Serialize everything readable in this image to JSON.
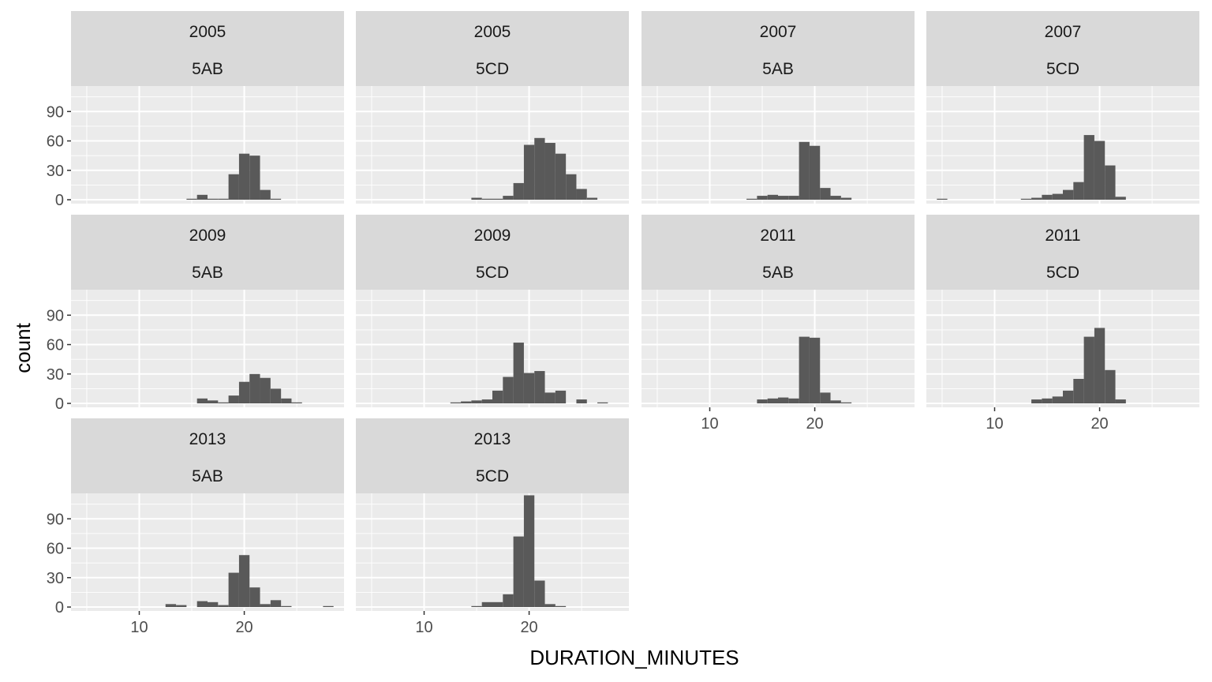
{
  "chart_data": {
    "type": "bar",
    "chart_kind": "faceted histogram",
    "xlabel": "DURATION_MINUTES",
    "ylabel": "count",
    "xlim": [
      3.5,
      29.5
    ],
    "ylim": [
      -4,
      116
    ],
    "x_ticks": [
      10,
      20
    ],
    "y_ticks": [
      0,
      30,
      60,
      90
    ],
    "bin_width": 1,
    "grid": true,
    "background": "#ebebeb",
    "strip_color": "#d9d9d9",
    "bar_color": "#595959",
    "gridline_color": "#ffffff",
    "panels": [
      {
        "year": "2005",
        "group": "5AB",
        "row": 0,
        "col": 0,
        "bins": [
          [
            15,
            1
          ],
          [
            16,
            5
          ],
          [
            17,
            1
          ],
          [
            18,
            1
          ],
          [
            19,
            26
          ],
          [
            20,
            47
          ],
          [
            21,
            45
          ],
          [
            22,
            10
          ],
          [
            23,
            1
          ]
        ]
      },
      {
        "year": "2005",
        "group": "5CD",
        "row": 0,
        "col": 1,
        "bins": [
          [
            15,
            2
          ],
          [
            16,
            1
          ],
          [
            17,
            1
          ],
          [
            18,
            4
          ],
          [
            19,
            17
          ],
          [
            20,
            56
          ],
          [
            21,
            63
          ],
          [
            22,
            58
          ],
          [
            23,
            47
          ],
          [
            24,
            26
          ],
          [
            25,
            11
          ],
          [
            26,
            2
          ]
        ]
      },
      {
        "year": "2007",
        "group": "5AB",
        "row": 0,
        "col": 2,
        "bins": [
          [
            14,
            1
          ],
          [
            15,
            4
          ],
          [
            16,
            5
          ],
          [
            17,
            4
          ],
          [
            18,
            4
          ],
          [
            19,
            59
          ],
          [
            20,
            55
          ],
          [
            21,
            12
          ],
          [
            22,
            4
          ],
          [
            23,
            2
          ]
        ]
      },
      {
        "year": "2007",
        "group": "5CD",
        "row": 0,
        "col": 3,
        "bins": [
          [
            5,
            1
          ],
          [
            13,
            1
          ],
          [
            14,
            2
          ],
          [
            15,
            5
          ],
          [
            16,
            6
          ],
          [
            17,
            10
          ],
          [
            18,
            18
          ],
          [
            19,
            66
          ],
          [
            20,
            60
          ],
          [
            21,
            35
          ],
          [
            22,
            3
          ]
        ]
      },
      {
        "year": "2009",
        "group": "5AB",
        "row": 1,
        "col": 0,
        "bins": [
          [
            16,
            5
          ],
          [
            17,
            3
          ],
          [
            18,
            1
          ],
          [
            19,
            8
          ],
          [
            20,
            22
          ],
          [
            21,
            30
          ],
          [
            22,
            26
          ],
          [
            23,
            15
          ],
          [
            24,
            5
          ],
          [
            25,
            1
          ]
        ]
      },
      {
        "year": "2009",
        "group": "5CD",
        "row": 1,
        "col": 1,
        "bins": [
          [
            13,
            1
          ],
          [
            14,
            2
          ],
          [
            15,
            3
          ],
          [
            16,
            4
          ],
          [
            17,
            13
          ],
          [
            18,
            27
          ],
          [
            19,
            62
          ],
          [
            20,
            31
          ],
          [
            21,
            33
          ],
          [
            22,
            11
          ],
          [
            23,
            13
          ],
          [
            25,
            4
          ],
          [
            27,
            1
          ]
        ]
      },
      {
        "year": "2011",
        "group": "5AB",
        "row": 1,
        "col": 2,
        "bins": [
          [
            15,
            4
          ],
          [
            16,
            5
          ],
          [
            17,
            6
          ],
          [
            18,
            5
          ],
          [
            19,
            68
          ],
          [
            20,
            67
          ],
          [
            21,
            11
          ],
          [
            22,
            3
          ],
          [
            23,
            1
          ]
        ]
      },
      {
        "year": "2011",
        "group": "5CD",
        "row": 1,
        "col": 3,
        "bins": [
          [
            14,
            4
          ],
          [
            15,
            5
          ],
          [
            16,
            7
          ],
          [
            17,
            13
          ],
          [
            18,
            25
          ],
          [
            19,
            68
          ],
          [
            20,
            77
          ],
          [
            21,
            34
          ],
          [
            22,
            4
          ]
        ]
      },
      {
        "year": "2013",
        "group": "5AB",
        "row": 2,
        "col": 0,
        "bins": [
          [
            13,
            3
          ],
          [
            14,
            2
          ],
          [
            16,
            6
          ],
          [
            17,
            5
          ],
          [
            18,
            2
          ],
          [
            19,
            35
          ],
          [
            20,
            53
          ],
          [
            21,
            20
          ],
          [
            22,
            3
          ],
          [
            23,
            7
          ],
          [
            24,
            1
          ],
          [
            28,
            1
          ]
        ]
      },
      {
        "year": "2013",
        "group": "5CD",
        "row": 2,
        "col": 1,
        "bins": [
          [
            15,
            1
          ],
          [
            16,
            5
          ],
          [
            17,
            5
          ],
          [
            18,
            13
          ],
          [
            19,
            72
          ],
          [
            20,
            114
          ],
          [
            21,
            27
          ],
          [
            22,
            3
          ],
          [
            23,
            1
          ]
        ]
      }
    ]
  }
}
